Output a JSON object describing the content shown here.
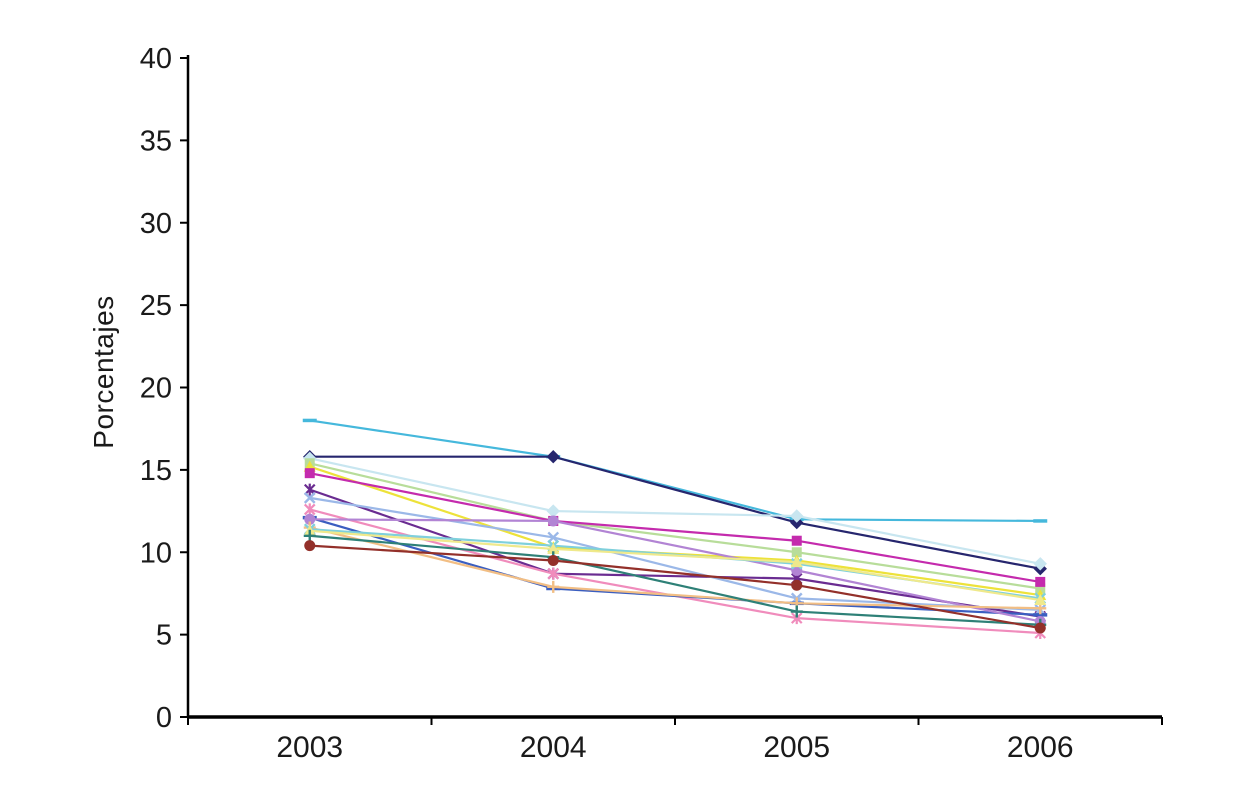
{
  "page": {
    "background": "#ffffff",
    "rule_color": "#1a1a1a",
    "axis_color": "#000000"
  },
  "chart_data": {
    "type": "line",
    "title": "",
    "xlabel": "",
    "ylabel": "Porcentajes",
    "categories": [
      "2003",
      "2004",
      "2005",
      "2006"
    ],
    "ylim": [
      0,
      40
    ],
    "yticks": [
      0,
      5,
      10,
      15,
      20,
      25,
      30,
      35,
      40
    ],
    "grid": false,
    "legend_position": "none",
    "series": [
      {
        "name": "sky-blue-dash",
        "color": "#45B8DC",
        "marker": "dash",
        "values": [
          18.0,
          15.8,
          12.0,
          11.9
        ]
      },
      {
        "name": "navy-diamond",
        "color": "#26266E",
        "marker": "diamond",
        "values": [
          15.8,
          15.8,
          11.8,
          9.0
        ]
      },
      {
        "name": "pale-cyan-diamond",
        "color": "#C8E6F0",
        "marker": "diamond",
        "values": [
          15.7,
          12.5,
          12.2,
          9.3
        ]
      },
      {
        "name": "pale-green-square",
        "color": "#B8DD9A",
        "marker": "square",
        "values": [
          15.4,
          11.9,
          10.0,
          7.8
        ]
      },
      {
        "name": "yellow-triangle",
        "color": "#EDE23A",
        "marker": "triangle",
        "values": [
          15.2,
          10.3,
          9.5,
          7.4
        ]
      },
      {
        "name": "magenta-square",
        "color": "#C42BAD",
        "marker": "square",
        "values": [
          14.8,
          11.9,
          10.7,
          8.2
        ]
      },
      {
        "name": "purple-asterisk",
        "color": "#6A2C91",
        "marker": "asterisk",
        "values": [
          13.8,
          8.7,
          8.4,
          6.1
        ]
      },
      {
        "name": "light-blue-x",
        "color": "#9BB8E8",
        "marker": "x",
        "values": [
          13.3,
          10.9,
          7.2,
          6.5
        ]
      },
      {
        "name": "pink-asterisk",
        "color": "#F08CBC",
        "marker": "asterisk",
        "values": [
          12.6,
          8.7,
          6.0,
          5.1
        ]
      },
      {
        "name": "blue-dash",
        "color": "#3B5EC0",
        "marker": "dash",
        "values": [
          12.1,
          7.8,
          6.9,
          6.2
        ]
      },
      {
        "name": "lavender-circle",
        "color": "#B284D4",
        "marker": "circle",
        "values": [
          12.0,
          11.9,
          8.9,
          5.8
        ]
      },
      {
        "name": "tan-plus",
        "color": "#F2BE84",
        "marker": "plus",
        "values": [
          11.5,
          7.9,
          6.9,
          6.6
        ]
      },
      {
        "name": "cyan-x",
        "color": "#7FD0DC",
        "marker": "x",
        "values": [
          11.4,
          10.4,
          9.3,
          7.2
        ]
      },
      {
        "name": "pale-yellow-triangle",
        "color": "#EFE98C",
        "marker": "triangle",
        "values": [
          11.3,
          10.2,
          9.4,
          7.1
        ]
      },
      {
        "name": "teal-plus",
        "color": "#2E8077",
        "marker": "plus",
        "values": [
          11.0,
          9.7,
          6.4,
          5.6
        ]
      },
      {
        "name": "dark-red-circle",
        "color": "#93302A",
        "marker": "circle",
        "values": [
          10.4,
          9.5,
          8.0,
          5.4
        ]
      }
    ]
  }
}
